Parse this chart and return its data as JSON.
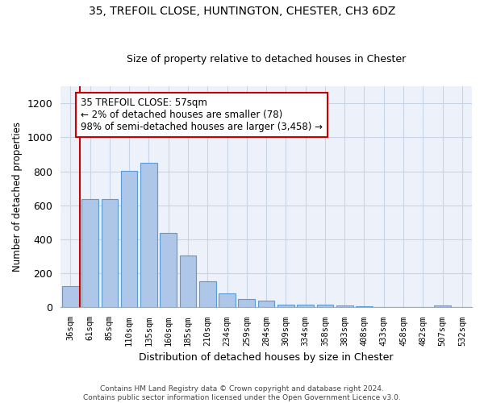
{
  "title1": "35, TREFOIL CLOSE, HUNTINGTON, CHESTER, CH3 6DZ",
  "title2": "Size of property relative to detached houses in Chester",
  "xlabel": "Distribution of detached houses by size in Chester",
  "ylabel": "Number of detached properties",
  "footer1": "Contains HM Land Registry data © Crown copyright and database right 2024.",
  "footer2": "Contains public sector information licensed under the Open Government Licence v3.0.",
  "categories": [
    "36sqm",
    "61sqm",
    "85sqm",
    "110sqm",
    "135sqm",
    "160sqm",
    "185sqm",
    "210sqm",
    "234sqm",
    "259sqm",
    "284sqm",
    "309sqm",
    "334sqm",
    "358sqm",
    "383sqm",
    "408sqm",
    "433sqm",
    "458sqm",
    "482sqm",
    "507sqm",
    "532sqm"
  ],
  "bar_values": [
    125,
    635,
    635,
    805,
    850,
    440,
    305,
    155,
    85,
    50,
    40,
    15,
    15,
    18,
    12,
    8,
    0,
    0,
    0,
    10,
    0
  ],
  "bar_color": "#aec6e8",
  "bar_edge_color": "#5b9bd5",
  "property_line_color": "#cc0000",
  "annotation_text1": "35 TREFOIL CLOSE: 57sqm",
  "annotation_text2": "← 2% of detached houses are smaller (78)",
  "annotation_text3": "98% of semi-detached houses are larger (3,458) →",
  "ylim": [
    0,
    1300
  ],
  "yticks": [
    0,
    200,
    400,
    600,
    800,
    1000,
    1200
  ],
  "grid_color": "#c8d4e8",
  "bg_color": "#edf1f9"
}
